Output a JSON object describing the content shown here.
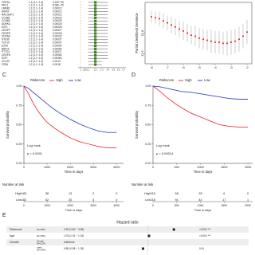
{
  "panel_a": {
    "genes": [
      "TOP2A",
      "PRC1",
      "LMNB1",
      "ASPM",
      "RACGAP1",
      "CCNB1",
      "CCNB2",
      "AURKA",
      "E2F1",
      "CENPF",
      "CENPK",
      "CDKN3",
      "STK39",
      "TCF19",
      "E2F8",
      "BIRC5",
      "PTTG1",
      "CENPU",
      "E2F7",
      "CCL20",
      "FZD6"
    ],
    "hr_text": [
      "1.2 (1.1−1.4)",
      "1.2 (1.1−1.4)",
      "1.2 (1.1−1.4)",
      "1.2 (1.1−1.4)",
      "1.2 (1.1−1.4)",
      "1.2 (1.1−1.4)",
      "1.2 (1.1−1.4)",
      "1.2 (1.1−1.4)",
      "1.2 (1.1−1.4)",
      "1.2 (1.1−1.4)",
      "1.2 (1.1−1.4)",
      "1.2 (1.1−1.4)",
      "1.2 (1.1−1.4)",
      "1.2 (1.1−1.4)",
      "1.2 (1.1−1.4)",
      "1.2 (1.1−1.4)",
      "1.2 (1.1−1.4)",
      "1.2 (1.1−1.4)",
      "1.2 (1.1−1.4)",
      "1.2 (1.1−1.3)",
      "1.2 (1.1−1.3)"
    ],
    "pvalues": [
      "4.10E−06",
      "8.06E−05",
      "0.00012",
      "0.00012",
      "0.00012",
      "0.00023",
      "0.00025",
      "0.00026",
      "0.00026",
      "0.00027",
      "0.00028",
      "0.00032",
      "0.00037",
      "0.00047",
      "0.00054",
      "0.00060",
      "0.00071",
      "0.00082",
      "0.00083",
      "0.0013",
      "0.0018"
    ],
    "hr": [
      1.2,
      1.2,
      1.2,
      1.2,
      1.2,
      1.2,
      1.2,
      1.2,
      1.2,
      1.2,
      1.2,
      1.2,
      1.2,
      1.2,
      1.2,
      1.2,
      1.2,
      1.2,
      1.2,
      1.2,
      1.2
    ],
    "lower": [
      1.1,
      1.1,
      1.1,
      1.1,
      1.1,
      1.1,
      1.1,
      1.1,
      1.1,
      1.1,
      1.1,
      1.1,
      1.1,
      1.1,
      1.1,
      1.1,
      1.1,
      1.1,
      1.1,
      1.1,
      1.1
    ],
    "upper": [
      1.4,
      1.4,
      1.4,
      1.4,
      1.4,
      1.4,
      1.4,
      1.4,
      1.4,
      1.4,
      1.4,
      1.4,
      1.4,
      1.4,
      1.4,
      1.4,
      1.4,
      1.4,
      1.4,
      1.3,
      1.3
    ],
    "color": "#3f7f1f",
    "xlim": [
      0.97,
      1.75
    ],
    "xticks": [
      1,
      1.05,
      1.1,
      1.2,
      1.3,
      1.4,
      1.5,
      1.6,
      1.7
    ]
  },
  "panel_b": {
    "ylabel": "Partial Likelihood Deviance",
    "x": [
      -8,
      -7.75,
      -7.5,
      -7.25,
      -7,
      -6.75,
      -6.5,
      -6.25,
      -6,
      -5.75,
      -5.5,
      -5.25,
      -5,
      -4.75,
      -4.5,
      -4.25,
      -4,
      -3.75,
      -3.5,
      -3.25,
      -3,
      -2.75,
      -2.5,
      -2.25,
      -2
    ],
    "values": [
      11.96,
      11.95,
      11.94,
      11.92,
      11.9,
      11.88,
      11.86,
      11.84,
      11.82,
      11.8,
      11.78,
      11.77,
      11.75,
      11.74,
      11.73,
      11.72,
      11.71,
      11.71,
      11.7,
      11.7,
      11.71,
      11.72,
      11.74,
      11.77,
      11.81
    ],
    "errors": [
      0.06,
      0.06,
      0.07,
      0.07,
      0.07,
      0.08,
      0.08,
      0.08,
      0.09,
      0.09,
      0.09,
      0.1,
      0.1,
      0.1,
      0.1,
      0.11,
      0.11,
      0.11,
      0.11,
      0.12,
      0.12,
      0.12,
      0.12,
      0.12,
      0.12
    ],
    "color": "#e41a1c",
    "error_color": "#b0b0b0",
    "xlim": [
      -8.4,
      -1.7
    ],
    "ylim": [
      11.5,
      12.1
    ],
    "xticks": [
      -8,
      -7,
      -6,
      -5,
      -4,
      -3,
      -2
    ],
    "yticks": [
      11.6,
      11.8
    ]
  },
  "km": [
    {
      "label": "C",
      "legend_title": "Riskscore",
      "ylabel": "Survival probability",
      "xlabel": "Time in days",
      "test": "Log−rank",
      "pvalue": "p < 0.0001",
      "risk_title": "Number at risk",
      "x": [
        0,
        200,
        400,
        600,
        800,
        1000,
        1300,
        1600,
        2000,
        2400,
        2800,
        3200,
        3600,
        4000
      ],
      "series": [
        {
          "name": "High",
          "color": "#e8383d",
          "values": [
            1,
            0.9,
            0.78,
            0.68,
            0.6,
            0.53,
            0.46,
            0.4,
            0.33,
            0.28,
            0.25,
            0.22,
            0.2,
            0.2
          ]
        },
        {
          "name": "Low",
          "color": "#3b4cc0",
          "values": [
            1,
            0.97,
            0.92,
            0.87,
            0.82,
            0.77,
            0.7,
            0.64,
            0.57,
            0.51,
            0.46,
            0.42,
            0.4,
            0.4
          ]
        }
      ],
      "risk": [
        [
          183,
          38,
          13,
          2,
          0
        ],
        [
          182,
          62,
          20,
          4,
          0
        ]
      ],
      "xlim": [
        0,
        4300
      ],
      "ylim": [
        0,
        1
      ],
      "xticks": [
        0,
        1000,
        2000,
        3000,
        4000
      ],
      "yticks": [
        {
          "value": 0,
          "label": "0.00"
        },
        {
          "value": 0.25,
          "label": "0.25"
        },
        {
          "value": 0.5,
          "label": "0.50"
        },
        {
          "value": 0.75,
          "label": "0.75"
        },
        {
          "value": 1,
          "label": "1.00"
        }
      ]
    },
    {
      "label": "D",
      "legend_title": "Riskscore",
      "ylabel": "Survival probability",
      "xlabel": "Time in days",
      "test": "Log−rank",
      "pvalue": "p = 0.00014",
      "risk_title": "Number at risk",
      "x": [
        0,
        150,
        300,
        450,
        600,
        800,
        1000,
        1200,
        1400,
        1600,
        1800,
        2000
      ],
      "series": [
        {
          "name": "High",
          "color": "#e8383d",
          "values": [
            1,
            0.93,
            0.85,
            0.78,
            0.72,
            0.65,
            0.6,
            0.55,
            0.5,
            0.48,
            0.47,
            0.47
          ]
        },
        {
          "name": "Low",
          "color": "#3b4cc0",
          "values": [
            1,
            0.99,
            0.97,
            0.95,
            0.93,
            0.92,
            0.9,
            0.88,
            0.86,
            0.84,
            0.83,
            0.83
          ]
        }
      ],
      "risk": [
        [
          115,
          68,
          25,
          6,
          0
        ],
        [
          116,
          91,
          44,
          17,
          1
        ]
      ],
      "xlim": [
        0,
        2100
      ],
      "ylim": [
        0,
        1
      ],
      "xticks": [
        0,
        500,
        1000,
        1500,
        2000
      ],
      "yticks": [
        {
          "value": 0,
          "label": "0.00"
        },
        {
          "value": 0.25,
          "label": "0.25"
        },
        {
          "value": 0.5,
          "label": "0.50"
        },
        {
          "value": 0.75,
          "label": "0.75"
        },
        {
          "value": 1,
          "label": "1.00"
        }
      ]
    }
  ],
  "panel_e": {
    "label": "E",
    "title": "Hazard ratio",
    "xlim": [
      0.4,
      4
    ],
    "rows": [
      {
        "variable": "Riskscore",
        "n": "(N=365)",
        "hr": 2.29,
        "estimate": "2.29 (1.60 − 3.28)",
        "p": "<0.001 ***"
      },
      {
        "variable": "Age",
        "n": "(N=365)",
        "hr": 1.03,
        "estimate": "1.03 (1.01 − 1.04)",
        "p": "<0.001 ***"
      },
      {
        "variable": "Gender",
        "level": "female",
        "n": "(N=119)",
        "estimate": "reference"
      },
      {
        "level": "male",
        "n": "(N=246)",
        "hr": 0.85,
        "estimate": "0.85 (0.58 − 1.25)",
        "p": "0.41"
      }
    ]
  }
}
